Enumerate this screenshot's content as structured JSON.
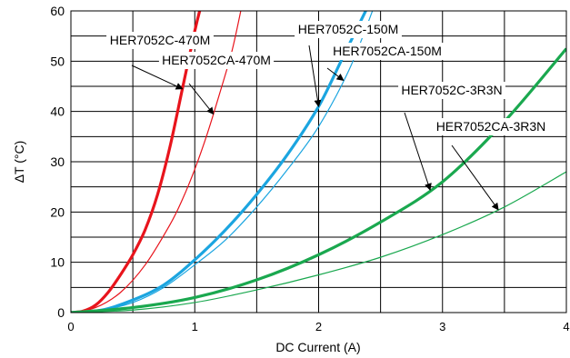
{
  "chart_data": {
    "type": "line",
    "title": "",
    "xlabel": "DC Current (A)",
    "ylabel": "ΔT (°C)",
    "xlim": [
      0,
      4
    ],
    "ylim": [
      0,
      60
    ],
    "x_ticks": [
      "0",
      "1",
      "2",
      "3",
      "4"
    ],
    "y_ticks": [
      "0",
      "10",
      "20",
      "30",
      "40",
      "50",
      "60"
    ],
    "grid": true,
    "series": [
      {
        "name": "HER7052C-470M",
        "color": "#e8141c",
        "weight": "thick",
        "x": [
          0,
          0.1,
          0.2,
          0.3,
          0.4,
          0.5,
          0.6,
          0.7,
          0.8,
          0.9,
          1.0,
          1.05
        ],
        "y": [
          0,
          0.3,
          1.5,
          4.0,
          7.5,
          11.5,
          16.5,
          23.5,
          33.0,
          44.5,
          56.0,
          61.0
        ]
      },
      {
        "name": "HER7052CA-470M",
        "color": "#e8141c",
        "weight": "thin",
        "x": [
          0,
          0.2,
          0.4,
          0.6,
          0.8,
          0.9,
          1.0,
          1.1,
          1.2,
          1.3,
          1.38
        ],
        "y": [
          0,
          1.0,
          4.0,
          9.5,
          17.5,
          22.5,
          28.5,
          35.5,
          43.5,
          52.0,
          61.0
        ]
      },
      {
        "name": "HER7052C-150M",
        "color": "#1ba5e0",
        "weight": "thick",
        "x": [
          0,
          0.25,
          0.5,
          0.75,
          1.0,
          1.25,
          1.5,
          1.75,
          2.0,
          2.2,
          2.4
        ],
        "y": [
          0,
          0.5,
          2.5,
          5.5,
          10.5,
          16.5,
          23.5,
          31.5,
          41.0,
          51.0,
          61.0
        ]
      },
      {
        "name": "HER7052CA-150M",
        "color": "#1ba5e0",
        "weight": "thin",
        "x": [
          0,
          0.25,
          0.5,
          0.75,
          1.0,
          1.25,
          1.5,
          1.75,
          2.0,
          2.25,
          2.45
        ],
        "y": [
          0,
          0.5,
          2.0,
          5.0,
          9.5,
          14.5,
          21.0,
          28.5,
          37.0,
          48.5,
          61.0
        ]
      },
      {
        "name": "HER7052C-3R3N",
        "color": "#1aa84f",
        "weight": "thick",
        "x": [
          0,
          0.5,
          1.0,
          1.5,
          2.0,
          2.5,
          3.0,
          3.5,
          4.0
        ],
        "y": [
          0,
          1.0,
          3.0,
          6.5,
          11.5,
          18.0,
          26.0,
          38.0,
          52.5
        ]
      },
      {
        "name": "HER7052CA-3R3N",
        "color": "#1aa84f",
        "weight": "thin",
        "x": [
          0,
          0.5,
          1.0,
          1.5,
          2.0,
          2.5,
          3.0,
          3.5,
          4.0
        ],
        "y": [
          0,
          0.5,
          2.0,
          4.5,
          7.5,
          11.0,
          15.5,
          21.0,
          28.0
        ]
      }
    ],
    "annotations": [
      {
        "text": "HER7052C-470M",
        "series": 0,
        "point_at_x": 0.9
      },
      {
        "text": "HER7052CA-470M",
        "series": 1,
        "point_at_x": 1.15
      },
      {
        "text": "HER7052C-150M",
        "series": 2,
        "point_at_x": 2.0
      },
      {
        "text": "HER7052CA-150M",
        "series": 3,
        "point_at_x": 2.2
      },
      {
        "text": "HER7052C-3R3N",
        "series": 4,
        "point_at_x": 2.9
      },
      {
        "text": "HER7052CA-3R3N",
        "series": 5,
        "point_at_x": 3.45
      }
    ]
  }
}
